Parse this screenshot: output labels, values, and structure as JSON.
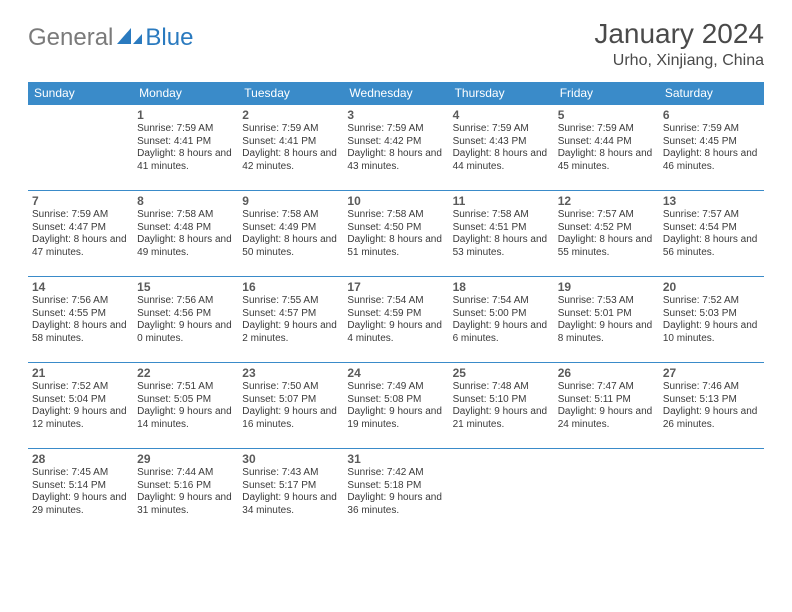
{
  "logo": {
    "part1": "General",
    "part2": "Blue"
  },
  "title": "January 2024",
  "location": "Urho, Xinjiang, China",
  "colors": {
    "header_bg": "#3a8bc9",
    "header_text": "#ffffff",
    "border": "#3a8bc9",
    "logo_gray": "#7a7a7a",
    "logo_blue": "#2a7abf",
    "text": "#3a3a3a"
  },
  "weekdays": [
    "Sunday",
    "Monday",
    "Tuesday",
    "Wednesday",
    "Thursday",
    "Friday",
    "Saturday"
  ],
  "weeks": [
    [
      null,
      {
        "n": "1",
        "sr": "7:59 AM",
        "ss": "4:41 PM",
        "dl": "8 hours and 41 minutes."
      },
      {
        "n": "2",
        "sr": "7:59 AM",
        "ss": "4:41 PM",
        "dl": "8 hours and 42 minutes."
      },
      {
        "n": "3",
        "sr": "7:59 AM",
        "ss": "4:42 PM",
        "dl": "8 hours and 43 minutes."
      },
      {
        "n": "4",
        "sr": "7:59 AM",
        "ss": "4:43 PM",
        "dl": "8 hours and 44 minutes."
      },
      {
        "n": "5",
        "sr": "7:59 AM",
        "ss": "4:44 PM",
        "dl": "8 hours and 45 minutes."
      },
      {
        "n": "6",
        "sr": "7:59 AM",
        "ss": "4:45 PM",
        "dl": "8 hours and 46 minutes."
      }
    ],
    [
      {
        "n": "7",
        "sr": "7:59 AM",
        "ss": "4:47 PM",
        "dl": "8 hours and 47 minutes."
      },
      {
        "n": "8",
        "sr": "7:58 AM",
        "ss": "4:48 PM",
        "dl": "8 hours and 49 minutes."
      },
      {
        "n": "9",
        "sr": "7:58 AM",
        "ss": "4:49 PM",
        "dl": "8 hours and 50 minutes."
      },
      {
        "n": "10",
        "sr": "7:58 AM",
        "ss": "4:50 PM",
        "dl": "8 hours and 51 minutes."
      },
      {
        "n": "11",
        "sr": "7:58 AM",
        "ss": "4:51 PM",
        "dl": "8 hours and 53 minutes."
      },
      {
        "n": "12",
        "sr": "7:57 AM",
        "ss": "4:52 PM",
        "dl": "8 hours and 55 minutes."
      },
      {
        "n": "13",
        "sr": "7:57 AM",
        "ss": "4:54 PM",
        "dl": "8 hours and 56 minutes."
      }
    ],
    [
      {
        "n": "14",
        "sr": "7:56 AM",
        "ss": "4:55 PM",
        "dl": "8 hours and 58 minutes."
      },
      {
        "n": "15",
        "sr": "7:56 AM",
        "ss": "4:56 PM",
        "dl": "9 hours and 0 minutes."
      },
      {
        "n": "16",
        "sr": "7:55 AM",
        "ss": "4:57 PM",
        "dl": "9 hours and 2 minutes."
      },
      {
        "n": "17",
        "sr": "7:54 AM",
        "ss": "4:59 PM",
        "dl": "9 hours and 4 minutes."
      },
      {
        "n": "18",
        "sr": "7:54 AM",
        "ss": "5:00 PM",
        "dl": "9 hours and 6 minutes."
      },
      {
        "n": "19",
        "sr": "7:53 AM",
        "ss": "5:01 PM",
        "dl": "9 hours and 8 minutes."
      },
      {
        "n": "20",
        "sr": "7:52 AM",
        "ss": "5:03 PM",
        "dl": "9 hours and 10 minutes."
      }
    ],
    [
      {
        "n": "21",
        "sr": "7:52 AM",
        "ss": "5:04 PM",
        "dl": "9 hours and 12 minutes."
      },
      {
        "n": "22",
        "sr": "7:51 AM",
        "ss": "5:05 PM",
        "dl": "9 hours and 14 minutes."
      },
      {
        "n": "23",
        "sr": "7:50 AM",
        "ss": "5:07 PM",
        "dl": "9 hours and 16 minutes."
      },
      {
        "n": "24",
        "sr": "7:49 AM",
        "ss": "5:08 PM",
        "dl": "9 hours and 19 minutes."
      },
      {
        "n": "25",
        "sr": "7:48 AM",
        "ss": "5:10 PM",
        "dl": "9 hours and 21 minutes."
      },
      {
        "n": "26",
        "sr": "7:47 AM",
        "ss": "5:11 PM",
        "dl": "9 hours and 24 minutes."
      },
      {
        "n": "27",
        "sr": "7:46 AM",
        "ss": "5:13 PM",
        "dl": "9 hours and 26 minutes."
      }
    ],
    [
      {
        "n": "28",
        "sr": "7:45 AM",
        "ss": "5:14 PM",
        "dl": "9 hours and 29 minutes."
      },
      {
        "n": "29",
        "sr": "7:44 AM",
        "ss": "5:16 PM",
        "dl": "9 hours and 31 minutes."
      },
      {
        "n": "30",
        "sr": "7:43 AM",
        "ss": "5:17 PM",
        "dl": "9 hours and 34 minutes."
      },
      {
        "n": "31",
        "sr": "7:42 AM",
        "ss": "5:18 PM",
        "dl": "9 hours and 36 minutes."
      },
      null,
      null,
      null
    ]
  ],
  "labels": {
    "sunrise": "Sunrise:",
    "sunset": "Sunset:",
    "daylight": "Daylight:"
  }
}
